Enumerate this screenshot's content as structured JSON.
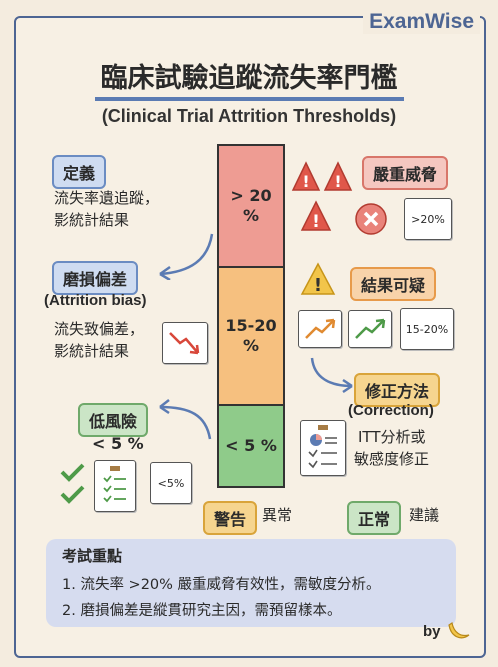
{
  "brand": "ExamWise",
  "title": "臨床試驗追蹤流失率門檻",
  "subtitle": "(Clinical Trial Attrition Thresholds)",
  "definition": {
    "tag": "定義",
    "line1": "流失率遺追蹤，",
    "line2": "影統計結果"
  },
  "bias": {
    "tag": "磨損偏差",
    "english": "(Attrition bias)",
    "line1": "流失致偏差，",
    "line2": "影統計結果"
  },
  "lowrisk": {
    "tag": "低風險",
    "value": "< 5 %",
    "card": "<5%"
  },
  "bar": {
    "high": "> 20\n%",
    "mid": "15-20\n%",
    "low": "< 5 %"
  },
  "severe": {
    "tag": "嚴重威脅",
    "card": ">20%"
  },
  "doubtful": {
    "tag": "結果可疑",
    "card": "15-20%"
  },
  "correction": {
    "tag": "修正方法",
    "english": "(Correction)",
    "line1": "ITT分析或",
    "line2": "敏感度修正"
  },
  "legend": {
    "warn_tag": "警告",
    "warn_text": "異常",
    "normal_tag": "正常",
    "normal_text": "建議"
  },
  "exam": {
    "title": "考試重點",
    "point1": "1. 流失率 >20% 嚴重威脅有效性，需敏度分析。",
    "point2": "2. 磨損偏差是縱貫研究主因，需預留樣本。"
  },
  "signature": "by",
  "colors": {
    "red": "#ee9c93",
    "orange": "#f6c07f",
    "green": "#8fcb8a",
    "accent": "#4d6593"
  }
}
